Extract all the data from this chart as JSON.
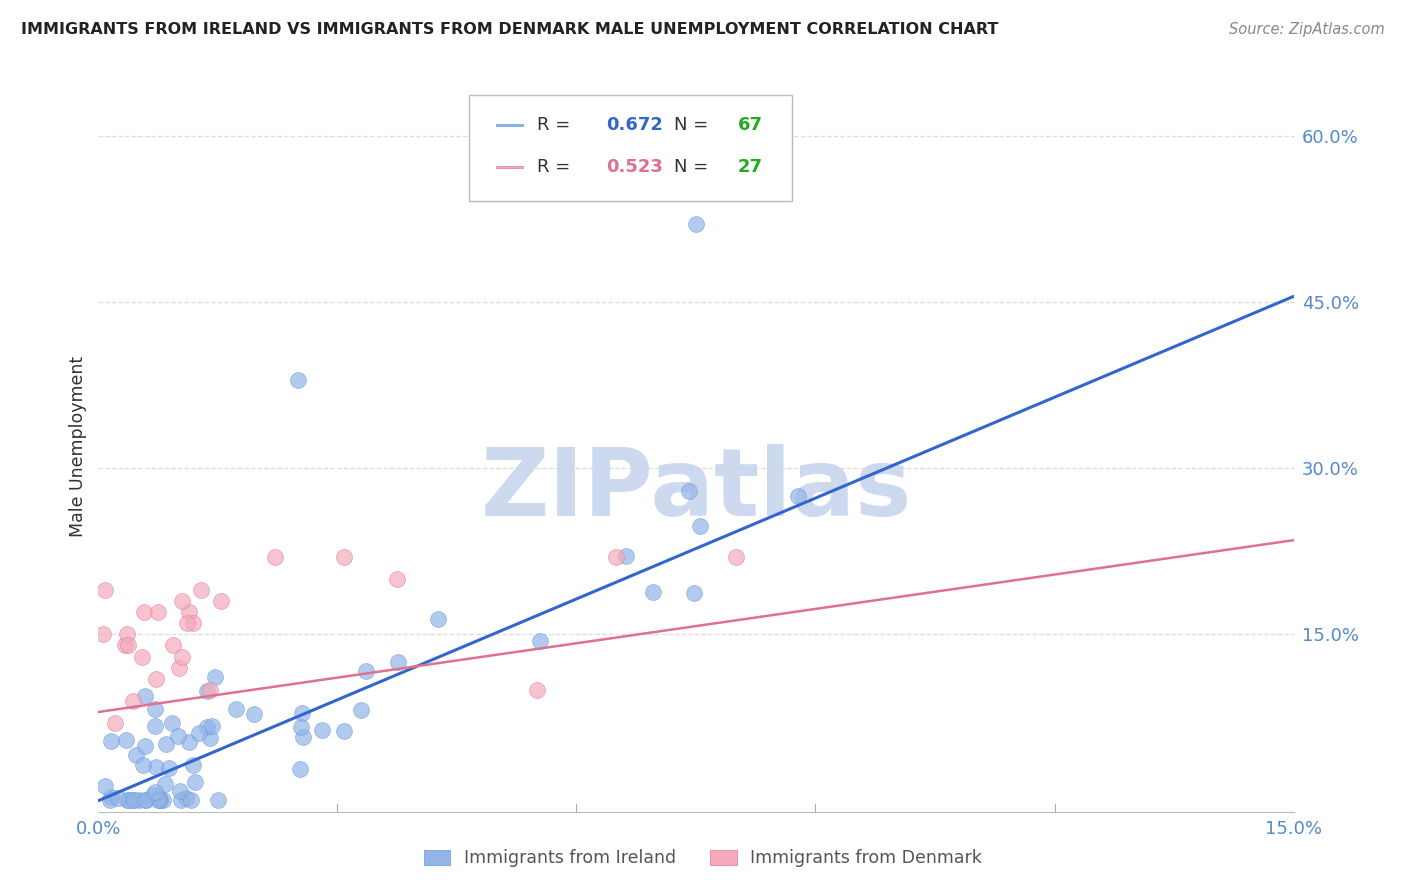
{
  "title": "IMMIGRANTS FROM IRELAND VS IMMIGRANTS FROM DENMARK MALE UNEMPLOYMENT CORRELATION CHART",
  "source": "Source: ZipAtlas.com",
  "ylabel": "Male Unemployment",
  "ytick_labels": [
    "15.0%",
    "30.0%",
    "45.0%",
    "60.0%"
  ],
  "ytick_values": [
    0.15,
    0.3,
    0.45,
    0.6
  ],
  "xtick_labels": [
    "0.0%",
    "15.0%"
  ],
  "xtick_vals": [
    0.0,
    0.15
  ],
  "xmin": 0.0,
  "xmax": 0.15,
  "ymin": -0.01,
  "ymax": 0.65,
  "ireland_color": "#92B4E8",
  "ireland_edge_color": "#6699DD",
  "denmark_color": "#F4AABB",
  "denmark_edge_color": "#DD7799",
  "ireland_R": 0.672,
  "ireland_N": 67,
  "denmark_R": 0.523,
  "denmark_N": 27,
  "ireland_line_color": "#3366CC",
  "ireland_line_x0": 0.0,
  "ireland_line_y0": 0.0,
  "ireland_line_x1": 0.15,
  "ireland_line_y1": 0.455,
  "denmark_line_color": "#E07090",
  "denmark_line_x0": 0.0,
  "denmark_line_y0": 0.08,
  "denmark_line_x1": 0.15,
  "denmark_line_y1": 0.235,
  "watermark_text": "ZIPatlas",
  "watermark_color": "#C8D5EE",
  "background_color": "#FFFFFF",
  "grid_color": "#DDDDDD",
  "legend_R_color_ireland": "#3366CC",
  "legend_N_color_ireland": "#22AA22",
  "legend_R_color_denmark": "#E07090",
  "legend_N_color_denmark": "#22AA22",
  "legend_label_ireland": "Immigrants from Ireland",
  "legend_label_denmark": "Immigrants from Denmark"
}
